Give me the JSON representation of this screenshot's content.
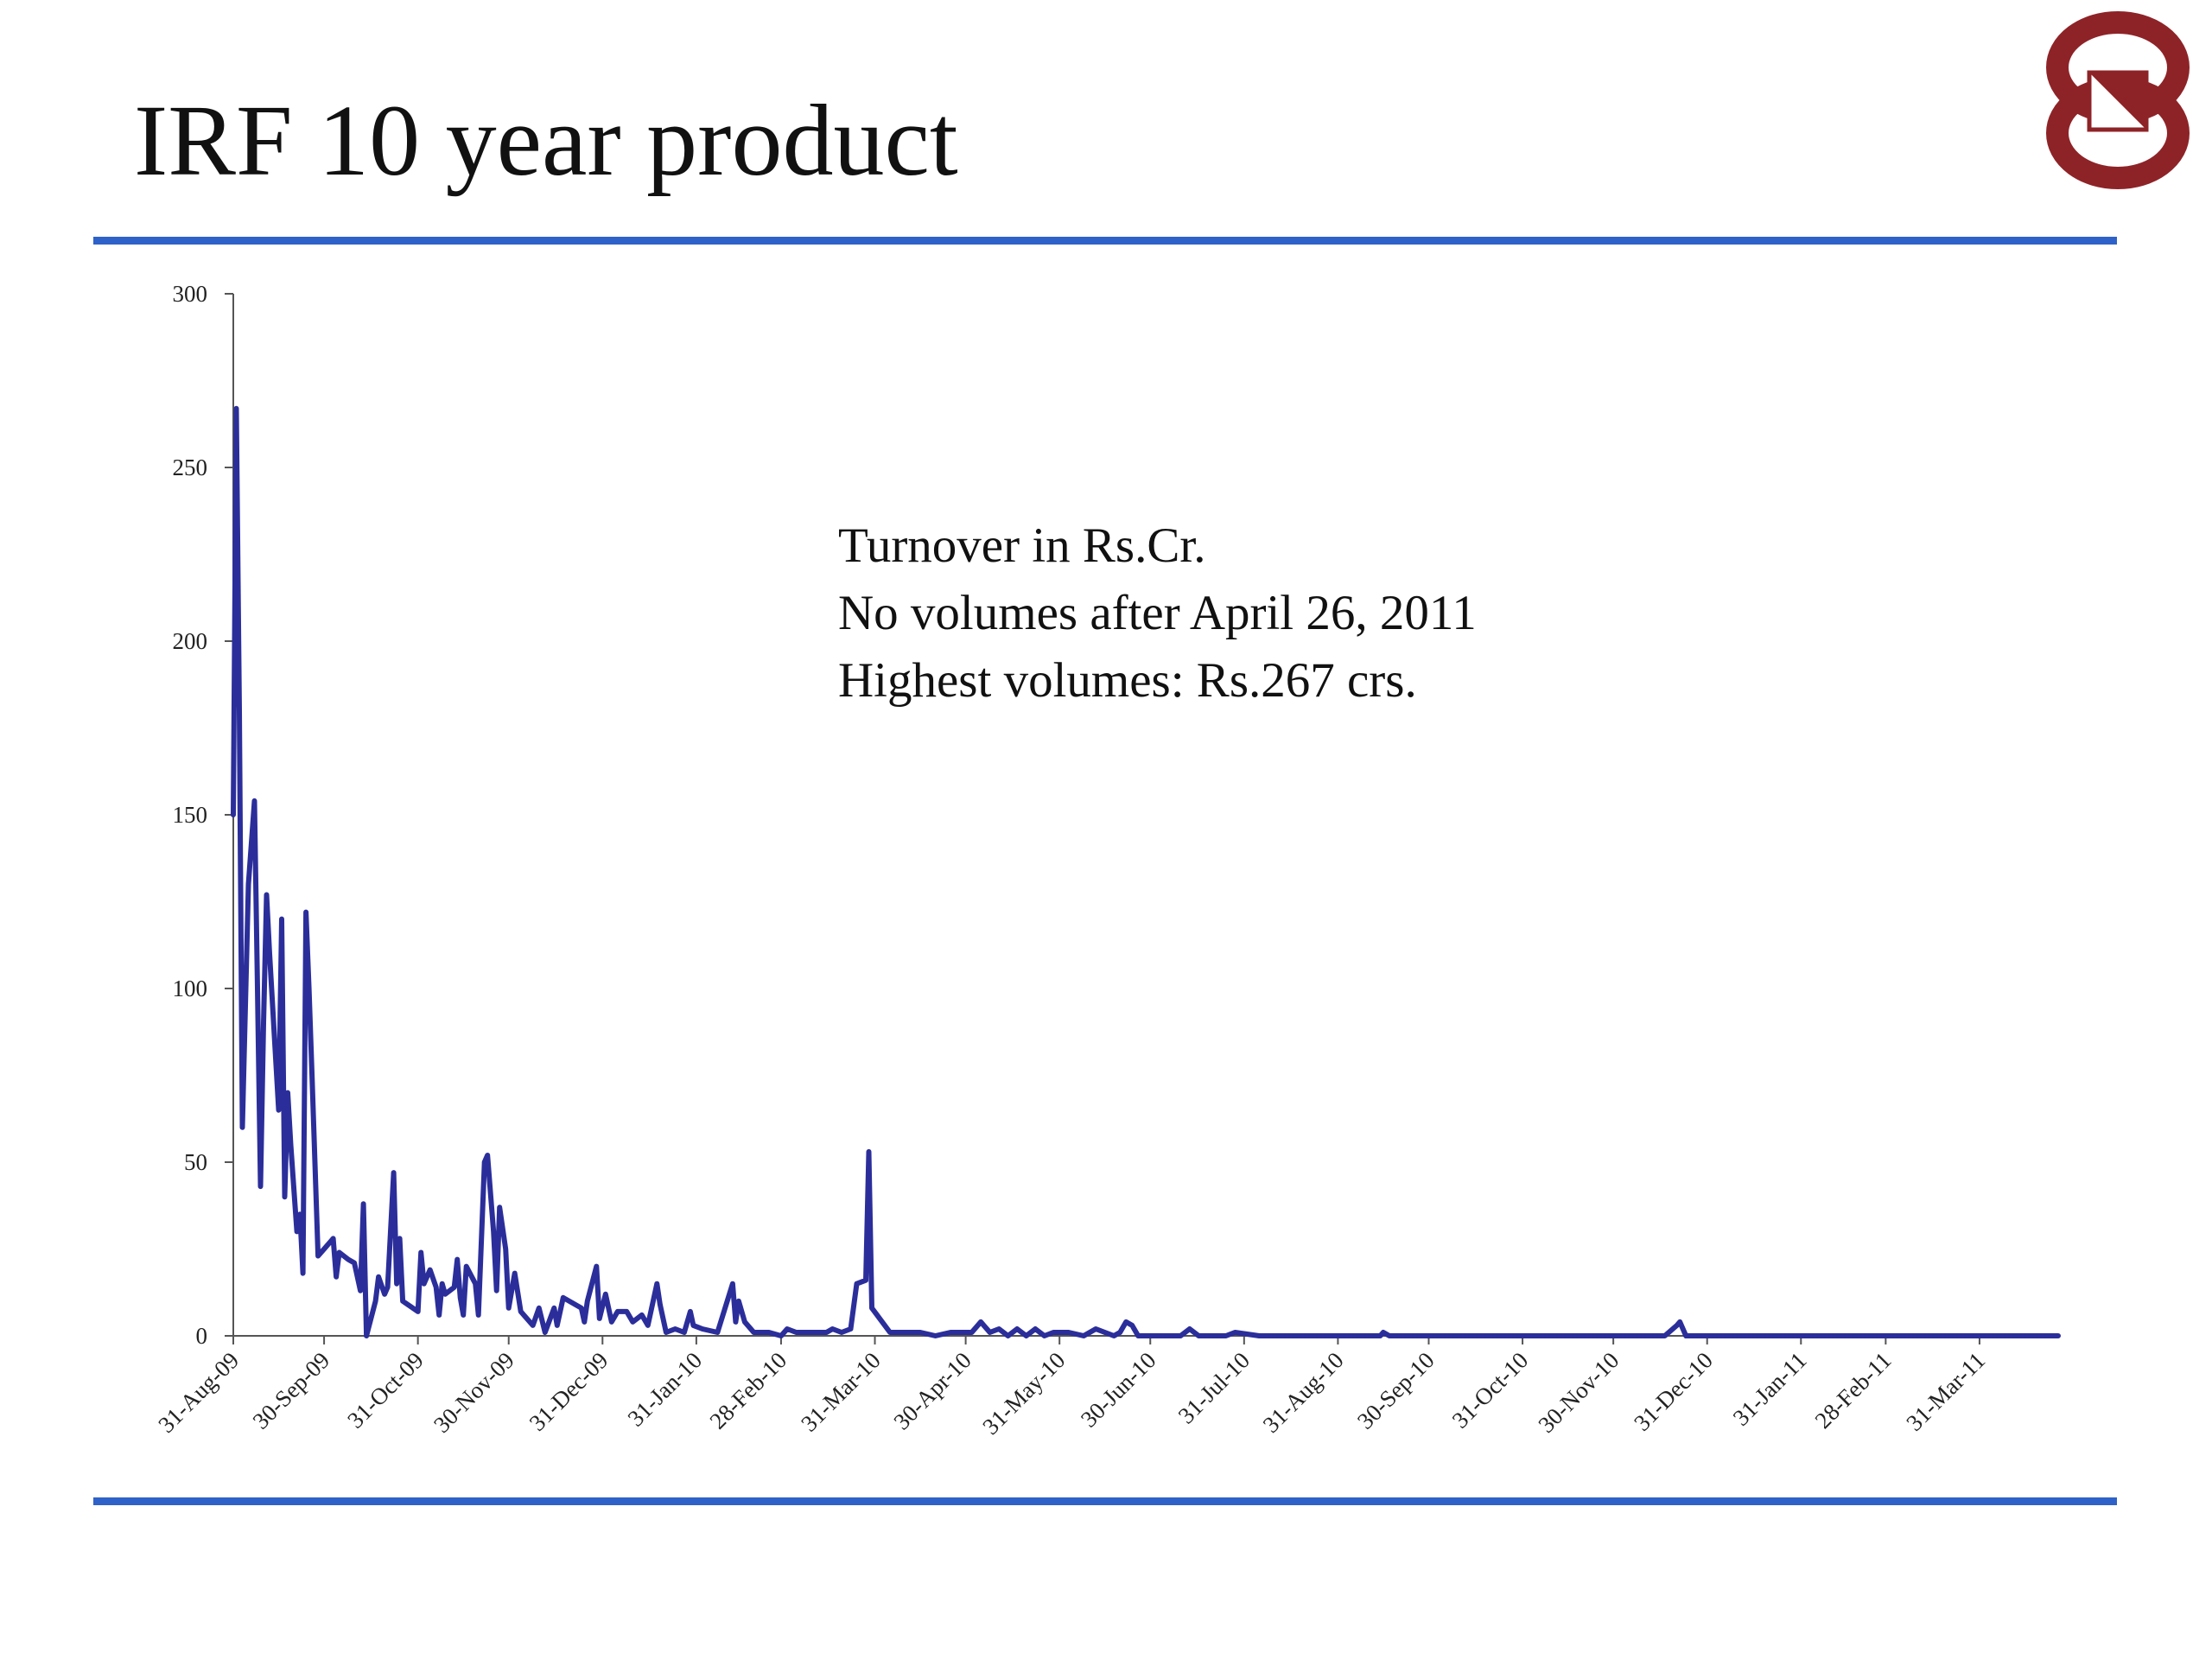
{
  "slide": {
    "title": "IRF 10 year product"
  },
  "colors": {
    "rule": "#2f62c8",
    "series": "#2b2e9a",
    "axis": "#555555",
    "logo": "#8e2327"
  },
  "logo": {
    "icon": "exchange-logo-icon"
  },
  "annotations": [
    "Turnover in Rs.Cr.",
    "No volumes after April 26, 2011",
    "Highest volumes: Rs.267 crs."
  ],
  "chart_data": {
    "type": "line",
    "title": "",
    "xlabel": "",
    "ylabel": "",
    "ylim": [
      0,
      300
    ],
    "yticks": [
      0,
      50,
      100,
      150,
      200,
      250,
      300
    ],
    "x_start": "2009-08-31",
    "x_end": "2011-04-26",
    "xticks": [
      {
        "date": "2009-08-31",
        "label": "31-Aug-09"
      },
      {
        "date": "2009-09-30",
        "label": "30-Sep-09"
      },
      {
        "date": "2009-10-31",
        "label": "31-Oct-09"
      },
      {
        "date": "2009-11-30",
        "label": "30-Nov-09"
      },
      {
        "date": "2009-12-31",
        "label": "31-Dec-09"
      },
      {
        "date": "2010-01-31",
        "label": "31-Jan-10"
      },
      {
        "date": "2010-02-28",
        "label": "28-Feb-10"
      },
      {
        "date": "2010-03-31",
        "label": "31-Mar-10"
      },
      {
        "date": "2010-04-30",
        "label": "30-Apr-10"
      },
      {
        "date": "2010-05-31",
        "label": "31-May-10"
      },
      {
        "date": "2010-06-30",
        "label": "30-Jun-10"
      },
      {
        "date": "2010-07-31",
        "label": "31-Jul-10"
      },
      {
        "date": "2010-08-31",
        "label": "31-Aug-10"
      },
      {
        "date": "2010-09-30",
        "label": "30-Sep-10"
      },
      {
        "date": "2010-10-31",
        "label": "31-Oct-10"
      },
      {
        "date": "2010-11-30",
        "label": "30-Nov-10"
      },
      {
        "date": "2010-12-31",
        "label": "31-Dec-10"
      },
      {
        "date": "2011-01-31",
        "label": "31-Jan-11"
      },
      {
        "date": "2011-02-28",
        "label": "28-Feb-11"
      },
      {
        "date": "2011-03-31",
        "label": "31-Mar-11"
      }
    ],
    "grid": false,
    "legend": "none",
    "series": [
      {
        "name": "",
        "points": [
          [
            "2009-08-31",
            150
          ],
          [
            "2009-09-01",
            267
          ],
          [
            "2009-09-02",
            180
          ],
          [
            "2009-09-03",
            60
          ],
          [
            "2009-09-04",
            95
          ],
          [
            "2009-09-05",
            130
          ],
          [
            "2009-09-07",
            154
          ],
          [
            "2009-09-08",
            100
          ],
          [
            "2009-09-09",
            43
          ],
          [
            "2009-09-10",
            90
          ],
          [
            "2009-09-11",
            127
          ],
          [
            "2009-09-12",
            110
          ],
          [
            "2009-09-14",
            80
          ],
          [
            "2009-09-15",
            65
          ],
          [
            "2009-09-16",
            120
          ],
          [
            "2009-09-17",
            40
          ],
          [
            "2009-09-18",
            70
          ],
          [
            "2009-09-19",
            55
          ],
          [
            "2009-09-21",
            30
          ],
          [
            "2009-09-22",
            35
          ],
          [
            "2009-09-23",
            18
          ],
          [
            "2009-09-24",
            122
          ],
          [
            "2009-09-25",
            100
          ],
          [
            "2009-09-26",
            75
          ],
          [
            "2009-09-28",
            23
          ],
          [
            "2009-09-30",
            25
          ],
          [
            "2009-10-03",
            28
          ],
          [
            "2009-10-04",
            17
          ],
          [
            "2009-10-05",
            24
          ],
          [
            "2009-10-08",
            22
          ],
          [
            "2009-10-10",
            21
          ],
          [
            "2009-10-12",
            13
          ],
          [
            "2009-10-13",
            38
          ],
          [
            "2009-10-14",
            0
          ],
          [
            "2009-10-17",
            10
          ],
          [
            "2009-10-18",
            17
          ],
          [
            "2009-10-20",
            12
          ],
          [
            "2009-10-21",
            14
          ],
          [
            "2009-10-23",
            47
          ],
          [
            "2009-10-24",
            15
          ],
          [
            "2009-10-25",
            28
          ],
          [
            "2009-10-26",
            10
          ],
          [
            "2009-10-31",
            7
          ],
          [
            "2009-11-01",
            24
          ],
          [
            "2009-11-02",
            15
          ],
          [
            "2009-11-04",
            19
          ],
          [
            "2009-11-06",
            14
          ],
          [
            "2009-11-07",
            6
          ],
          [
            "2009-11-08",
            15
          ],
          [
            "2009-11-09",
            12
          ],
          [
            "2009-11-12",
            14
          ],
          [
            "2009-11-13",
            22
          ],
          [
            "2009-11-14",
            11
          ],
          [
            "2009-11-15",
            6
          ],
          [
            "2009-11-16",
            20
          ],
          [
            "2009-11-19",
            15
          ],
          [
            "2009-11-20",
            6
          ],
          [
            "2009-11-22",
            50
          ],
          [
            "2009-11-23",
            52
          ],
          [
            "2009-11-25",
            30
          ],
          [
            "2009-11-26",
            13
          ],
          [
            "2009-11-27",
            37
          ],
          [
            "2009-11-29",
            25
          ],
          [
            "2009-11-30",
            8
          ],
          [
            "2009-12-02",
            18
          ],
          [
            "2009-12-04",
            7
          ],
          [
            "2009-12-08",
            3
          ],
          [
            "2009-12-10",
            8
          ],
          [
            "2009-12-12",
            1
          ],
          [
            "2009-12-15",
            8
          ],
          [
            "2009-12-16",
            3
          ],
          [
            "2009-12-18",
            11
          ],
          [
            "2009-12-24",
            8
          ],
          [
            "2009-12-25",
            4
          ],
          [
            "2009-12-26",
            10
          ],
          [
            "2009-12-29",
            20
          ],
          [
            "2009-12-30",
            5
          ],
          [
            "2010-01-01",
            12
          ],
          [
            "2010-01-03",
            4
          ],
          [
            "2010-01-05",
            7
          ],
          [
            "2010-01-08",
            7
          ],
          [
            "2010-01-10",
            4
          ],
          [
            "2010-01-13",
            6
          ],
          [
            "2010-01-15",
            3
          ],
          [
            "2010-01-18",
            15
          ],
          [
            "2010-01-19",
            9
          ],
          [
            "2010-01-21",
            1
          ],
          [
            "2010-01-24",
            2
          ],
          [
            "2010-01-27",
            1
          ],
          [
            "2010-01-29",
            7
          ],
          [
            "2010-01-30",
            3
          ],
          [
            "2010-02-02",
            2
          ],
          [
            "2010-02-07",
            1
          ],
          [
            "2010-02-12",
            15
          ],
          [
            "2010-02-13",
            4
          ],
          [
            "2010-02-14",
            10
          ],
          [
            "2010-02-16",
            4
          ],
          [
            "2010-02-19",
            1
          ],
          [
            "2010-02-24",
            1
          ],
          [
            "2010-02-28",
            0
          ],
          [
            "2010-03-02",
            2
          ],
          [
            "2010-03-05",
            1
          ],
          [
            "2010-03-10",
            1
          ],
          [
            "2010-03-15",
            1
          ],
          [
            "2010-03-17",
            2
          ],
          [
            "2010-03-20",
            1
          ],
          [
            "2010-03-23",
            2
          ],
          [
            "2010-03-25",
            15
          ],
          [
            "2010-03-28",
            16
          ],
          [
            "2010-03-29",
            53
          ],
          [
            "2010-03-30",
            8
          ],
          [
            "2010-04-05",
            1
          ],
          [
            "2010-04-10",
            1
          ],
          [
            "2010-04-15",
            1
          ],
          [
            "2010-04-20",
            0
          ],
          [
            "2010-04-25",
            1
          ],
          [
            "2010-04-28",
            1
          ],
          [
            "2010-05-02",
            1
          ],
          [
            "2010-05-05",
            4
          ],
          [
            "2010-05-08",
            1
          ],
          [
            "2010-05-11",
            2
          ],
          [
            "2010-05-14",
            0
          ],
          [
            "2010-05-17",
            2
          ],
          [
            "2010-05-20",
            0
          ],
          [
            "2010-05-23",
            2
          ],
          [
            "2010-05-26",
            0
          ],
          [
            "2010-05-29",
            1
          ],
          [
            "2010-06-03",
            1
          ],
          [
            "2010-06-08",
            0
          ],
          [
            "2010-06-12",
            2
          ],
          [
            "2010-06-15",
            1
          ],
          [
            "2010-06-18",
            0
          ],
          [
            "2010-06-20",
            1
          ],
          [
            "2010-06-22",
            4
          ],
          [
            "2010-06-24",
            3
          ],
          [
            "2010-06-26",
            0
          ],
          [
            "2010-07-10",
            0
          ],
          [
            "2010-07-13",
            2
          ],
          [
            "2010-07-16",
            0
          ],
          [
            "2010-07-25",
            0
          ],
          [
            "2010-07-28",
            1
          ],
          [
            "2010-08-05",
            0
          ],
          [
            "2010-09-14",
            0
          ],
          [
            "2010-09-15",
            1
          ],
          [
            "2010-09-17",
            0
          ],
          [
            "2010-12-17",
            0
          ],
          [
            "2010-12-21",
            3
          ],
          [
            "2010-12-22",
            4
          ],
          [
            "2010-12-24",
            0
          ],
          [
            "2011-04-26",
            0
          ]
        ]
      }
    ]
  }
}
